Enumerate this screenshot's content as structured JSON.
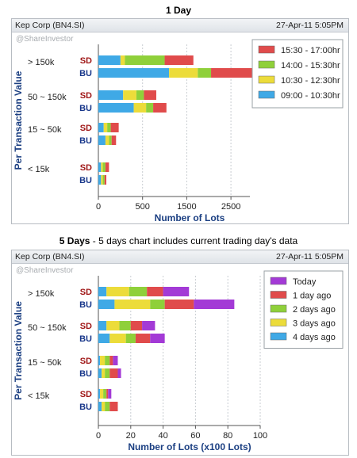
{
  "chart_data": [
    {
      "type": "bar",
      "stacked": true,
      "orientation": "horizontal",
      "title": "1 Day",
      "subtitle": "",
      "header_left": "Kep Corp (BN4.SI)",
      "header_right": "27-Apr-11 5:05PM",
      "watermark": "@ShareInvestor",
      "xlabel": "Number of Lots",
      "ylabel": "Per Transaction Value",
      "xlim": [
        0,
        2500
      ],
      "xticks": [
        "0",
        "500",
        "1500",
        "2500"
      ],
      "xtick_values": [
        0,
        500,
        1500,
        2500
      ],
      "x_scale": "piecewise (0-500 and 500-2500 segments of equal width)",
      "grid": "vertical, dotted",
      "legend_position": "top-right",
      "groups": [
        "> 150k",
        "50 ~ 150k",
        "15 ~ 50k",
        "< 15k"
      ],
      "categories": [
        "SD",
        "BU"
      ],
      "series": [
        {
          "name": "09:00 - 10:30hr",
          "color": "#3fa9e6",
          "values": {
            "> 150k": [
              250,
              1100
            ],
            "50 ~ 150k": [
              280,
              400
            ],
            "15 ~ 50k": [
              60,
              80
            ],
            "< 15k": [
              30,
              30
            ]
          }
        },
        {
          "name": "10:30 - 12:30hr",
          "color": "#ecdc3a",
          "values": {
            "> 150k": [
              50,
              650
            ],
            "50 ~ 150k": [
              150,
              180
            ],
            "15 ~ 50k": [
              40,
              40
            ],
            "< 15k": [
              20,
              20
            ]
          }
        },
        {
          "name": "14:00 - 15:30hr",
          "color": "#8fd03a",
          "values": {
            "> 150k": [
              700,
              300
            ],
            "50 ~ 150k": [
              100,
              160
            ],
            "15 ~ 50k": [
              40,
              30
            ],
            "< 15k": [
              30,
              20
            ]
          }
        },
        {
          "name": "15:30 - 17:00hr",
          "color": "#e04b4b",
          "values": {
            "> 150k": [
              650,
              1600
            ],
            "50 ~ 150k": [
              280,
              300
            ],
            "15 ~ 50k": [
              90,
              50
            ],
            "< 15k": [
              40,
              20
            ]
          }
        }
      ],
      "legend_order": [
        "15:30 - 17:00hr",
        "14:00 - 15:30hr",
        "10:30 - 12:30hr",
        "09:00 - 10:30hr"
      ]
    },
    {
      "type": "bar",
      "stacked": true,
      "orientation": "horizontal",
      "title": "5 Days",
      "subtitle": " - 5 days chart includes current trading day's data",
      "header_left": "Kep Corp (BN4.SI)",
      "header_right": "27-Apr-11 5:05PM",
      "watermark": "@ShareInvestor",
      "xlabel": "Number of Lots (x100 Lots)",
      "ylabel": "Per Transaction Value",
      "xlim": [
        0,
        100
      ],
      "xticks": [
        "0",
        "20",
        "40",
        "60",
        "80",
        "100"
      ],
      "xtick_values": [
        0,
        20,
        40,
        60,
        80,
        100
      ],
      "x_scale": "linear",
      "grid": "vertical, dotted",
      "legend_position": "top-right",
      "groups": [
        "> 150k",
        "50 ~ 150k",
        "15 ~ 50k",
        "< 15k"
      ],
      "categories": [
        "SD",
        "BU"
      ],
      "series": [
        {
          "name": "4 days ago",
          "color": "#3fa9e6",
          "values": {
            "> 150k": [
              5,
              10
            ],
            "50 ~ 150k": [
              5,
              7
            ],
            "15 ~ 50k": [
              1,
              2
            ],
            "< 15k": [
              1,
              2
            ]
          }
        },
        {
          "name": "3 days ago",
          "color": "#ecdc3a",
          "values": {
            "> 150k": [
              14,
              22
            ],
            "50 ~ 150k": [
              8,
              10
            ],
            "15 ~ 50k": [
              3,
              2
            ],
            "< 15k": [
              2,
              2
            ]
          }
        },
        {
          "name": "2 days ago",
          "color": "#8fd03a",
          "values": {
            "> 150k": [
              11,
              9
            ],
            "50 ~ 150k": [
              7,
              6
            ],
            "15 ~ 50k": [
              3,
              3
            ],
            "< 15k": [
              2,
              3
            ]
          }
        },
        {
          "name": "1 day ago",
          "color": "#e04b4b",
          "values": {
            "> 150k": [
              10,
              18
            ],
            "50 ~ 150k": [
              7,
              9
            ],
            "15 ~ 50k": [
              2,
              5
            ],
            "< 15k": [
              1,
              5
            ]
          }
        },
        {
          "name": "Today",
          "color": "#a33ad6",
          "values": {
            "> 150k": [
              16,
              25
            ],
            "50 ~ 150k": [
              8,
              9
            ],
            "15 ~ 50k": [
              3,
              2
            ],
            "< 15k": [
              2,
              0
            ]
          }
        }
      ],
      "legend_order": [
        "Today",
        "1 day ago",
        "2 days ago",
        "3 days ago",
        "4 days ago"
      ]
    }
  ]
}
